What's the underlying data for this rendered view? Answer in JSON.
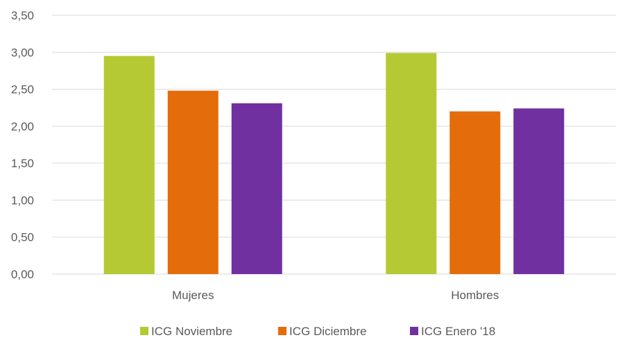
{
  "chart_data": {
    "type": "bar",
    "categories": [
      "Mujeres",
      "Hombres"
    ],
    "series": [
      {
        "name": "ICG Noviembre",
        "values": [
          2.95,
          2.99
        ],
        "color": "#b5c934"
      },
      {
        "name": "ICG Diciembre",
        "values": [
          2.48,
          2.2
        ],
        "color": "#e46c0a"
      },
      {
        "name": "ICG Enero '18",
        "values": [
          2.31,
          2.24
        ],
        "color": "#7030a0"
      }
    ],
    "yticks": [
      "0,00",
      "0,50",
      "1,00",
      "1,50",
      "2,00",
      "2,50",
      "3,00",
      "3,50"
    ],
    "ylim": [
      0,
      3.5
    ],
    "title": "",
    "xlabel": "",
    "ylabel": "",
    "grid": true,
    "legend": "bottom"
  }
}
